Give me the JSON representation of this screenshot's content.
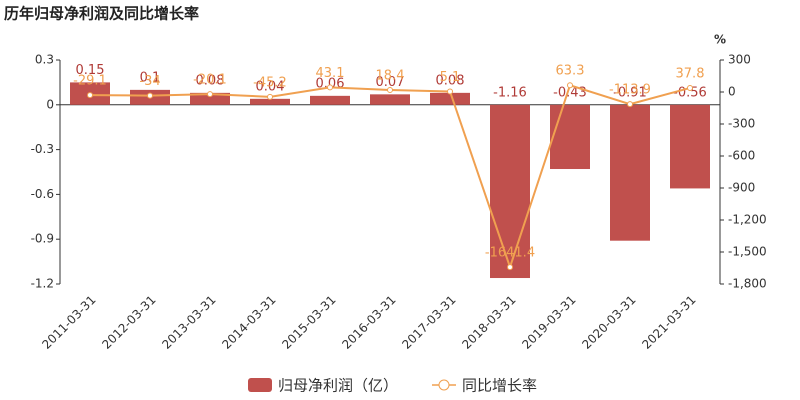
{
  "chart_data": {
    "type": "bar",
    "title": "历年归母净利润及同比增长率",
    "y2label": "%",
    "categories": [
      "2011-03-31",
      "2012-03-31",
      "2013-03-31",
      "2014-03-31",
      "2015-03-31",
      "2016-03-31",
      "2017-03-31",
      "2018-03-31",
      "2019-03-31",
      "2020-03-31",
      "2021-03-31"
    ],
    "series": [
      {
        "name": "归母净利润（亿）",
        "type": "bar",
        "color": "#c0504d",
        "values": [
          0.15,
          0.1,
          0.08,
          0.04,
          0.06,
          0.07,
          0.08,
          -1.16,
          -0.43,
          -0.91,
          -0.56
        ]
      },
      {
        "name": "同比增长率",
        "type": "line",
        "axis": "y2",
        "color": "#f0a050",
        "values": [
          -29.1,
          -34,
          -20.1,
          -45.2,
          43.1,
          18.4,
          5.1,
          -1641.4,
          63.3,
          -113.9,
          37.8
        ]
      }
    ],
    "ylim": [
      -1.2,
      0.3
    ],
    "yticks": [
      -1.2,
      -0.9,
      -0.6,
      -0.3,
      0,
      0.3
    ],
    "y2lim": [
      -1800,
      300
    ],
    "y2ticks": [
      {
        "value": -1800,
        "label": "-1,800"
      },
      {
        "value": -1500,
        "label": "-1,500"
      },
      {
        "value": -1200,
        "label": "-1,200"
      },
      -900,
      -600,
      -300,
      0,
      300
    ]
  }
}
